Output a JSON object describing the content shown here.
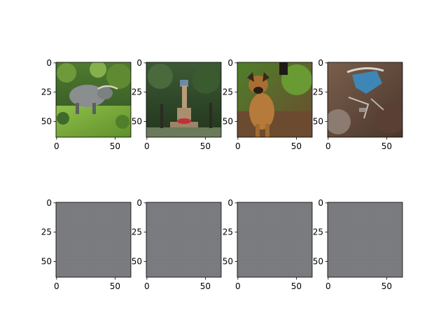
{
  "chart_data": {
    "type": "image-grid",
    "rows": 2,
    "cols": 4,
    "axis_range": [
      0,
      63
    ],
    "xticks": [
      0,
      50
    ],
    "yticks": [
      0,
      25,
      50
    ],
    "grid": false,
    "panels": [
      {
        "row": 0,
        "col": 0,
        "content": "water-buffalo-photo",
        "palette": [
          "#7fae3c",
          "#3f6b2a",
          "#8c8f8e",
          "#2e3a22"
        ]
      },
      {
        "row": 0,
        "col": 1,
        "content": "war-memorial-photo",
        "palette": [
          "#2f4a2a",
          "#6d8aa0",
          "#b89c7a",
          "#c0303a"
        ]
      },
      {
        "row": 0,
        "col": 2,
        "content": "dog-photo",
        "palette": [
          "#b67a3a",
          "#5a8a2a",
          "#6b4a30",
          "#2a1e14"
        ]
      },
      {
        "row": 0,
        "col": 3,
        "content": "dam-aerial-photo",
        "palette": [
          "#6a4e3e",
          "#3e86b6",
          "#8c7b70",
          "#3a2a22"
        ]
      },
      {
        "row": 1,
        "col": 0,
        "content": "uniform-gray",
        "palette": [
          "#7a7b7f"
        ]
      },
      {
        "row": 1,
        "col": 1,
        "content": "uniform-gray",
        "palette": [
          "#7a7b7f"
        ]
      },
      {
        "row": 1,
        "col": 2,
        "content": "uniform-gray",
        "palette": [
          "#7a7b7f"
        ]
      },
      {
        "row": 1,
        "col": 3,
        "content": "uniform-gray",
        "palette": [
          "#7a7b7f"
        ]
      }
    ]
  }
}
